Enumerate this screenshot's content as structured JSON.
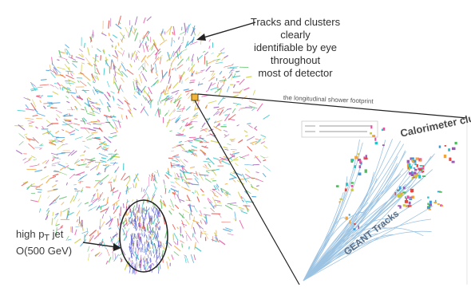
{
  "annotations": {
    "tracks_note_line1": "Tracks and clusters clearly",
    "tracks_note_line2": "identifiable by eye throughout",
    "tracks_note_line3": "most of detector",
    "jet_note_line1": "high p",
    "jet_note_sub": "T",
    "jet_note_tail": " jet",
    "jet_note_line2": "O(500 GeV)",
    "shower_label": "the longitudinal shower footprint",
    "calorimeter_label": "Calorimeter clusters",
    "geant_label": "GEANT Tracks"
  },
  "colors": {
    "track_palette": [
      "#e8453c",
      "#3a9ad9",
      "#4cbb5a",
      "#f2a33a",
      "#9b59b6",
      "#e84fa1",
      "#27c2c7",
      "#c9c930"
    ],
    "jet_color": "#5a5fd0",
    "geant_track_color": "#9cc3e2",
    "arrow_color": "#222222"
  }
}
